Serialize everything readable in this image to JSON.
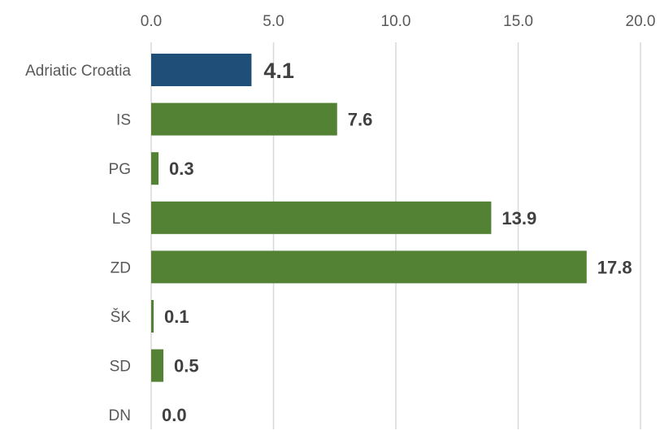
{
  "chart_data": {
    "type": "bar",
    "orientation": "horizontal",
    "categories": [
      "Adriatic Croatia",
      "IS",
      "PG",
      "LS",
      "ZD",
      "ŠK",
      "SD",
      "DN"
    ],
    "values": [
      4.1,
      7.6,
      0.3,
      13.9,
      17.8,
      0.1,
      0.5,
      0.0
    ],
    "data_labels": [
      "4.1",
      "7.6",
      "0.3",
      "13.9",
      "17.8",
      "0.1",
      "0.5",
      "0.0"
    ],
    "highlight_category": "Adriatic Croatia",
    "xlim": [
      0,
      20
    ],
    "ticks": [
      0,
      5,
      10,
      15,
      20
    ],
    "tick_labels": [
      "0.0",
      "5.0",
      "10.0",
      "15.0",
      "20.0"
    ],
    "axis_position": "top",
    "grid": true,
    "colors": {
      "highlight": "#1f4e79",
      "default": "#548235"
    },
    "title": "",
    "xlabel": "",
    "ylabel": ""
  }
}
